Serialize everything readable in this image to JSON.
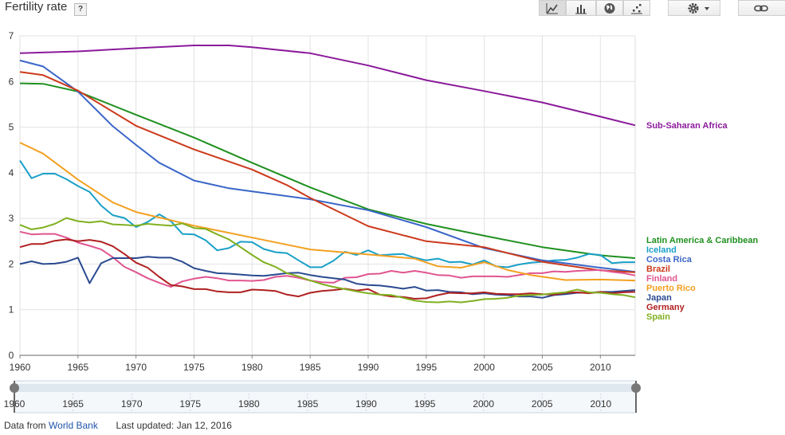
{
  "header": {
    "title": "Fertility rate",
    "help_label": "?",
    "toolbar": [
      {
        "name": "line-chart-icon",
        "active": true
      },
      {
        "name": "bar-chart-icon",
        "active": false
      },
      {
        "name": "map-icon",
        "active": false
      },
      {
        "name": "scatter-chart-icon",
        "active": false
      },
      {
        "name": "settings-icon",
        "active": false
      },
      {
        "name": "link-icon",
        "active": false
      }
    ]
  },
  "footer": {
    "source_prefix": "Data from",
    "source_link": "World Bank",
    "updated": "Last updated: Jan 12, 2016"
  },
  "chart_data": {
    "type": "line",
    "xlim": [
      1960,
      2013
    ],
    "ylim": [
      0,
      7
    ],
    "x_ticks": [
      1960,
      1965,
      1970,
      1975,
      1980,
      1985,
      1990,
      1995,
      2000,
      2005,
      2010
    ],
    "y_ticks": [
      0,
      1,
      2,
      3,
      4,
      5,
      6,
      7
    ],
    "grid": true,
    "legend_position": "right",
    "range_slider": {
      "start": 1960,
      "end": 2013
    },
    "series": [
      {
        "name": "Sub-Saharan Africa",
        "color": "#8b1a9b",
        "x": [
          1960,
          1965,
          1970,
          1975,
          1978,
          1980,
          1985,
          1990,
          1995,
          2000,
          2005,
          2010,
          2013
        ],
        "y": [
          6.62,
          6.66,
          6.73,
          6.79,
          6.79,
          6.75,
          6.62,
          6.35,
          6.03,
          5.79,
          5.54,
          5.23,
          5.04
        ]
      },
      {
        "name": "Latin America & Caribbean",
        "color": "#209020",
        "x": [
          1960,
          1962,
          1965,
          1970,
          1975,
          1980,
          1985,
          1990,
          1995,
          2000,
          2005,
          2010,
          2013
        ],
        "y": [
          5.96,
          5.95,
          5.78,
          5.27,
          4.77,
          4.22,
          3.68,
          3.2,
          2.88,
          2.62,
          2.37,
          2.19,
          2.13
        ]
      },
      {
        "name": "Iceland",
        "color": "#1aa0c8",
        "x": [
          1960,
          1961,
          1962,
          1963,
          1964,
          1965,
          1966,
          1967,
          1968,
          1969,
          1970,
          1971,
          1972,
          1973,
          1974,
          1975,
          1976,
          1977,
          1978,
          1979,
          1980,
          1981,
          1982,
          1983,
          1984,
          1985,
          1986,
          1987,
          1988,
          1989,
          1990,
          1991,
          1992,
          1993,
          1994,
          1995,
          1996,
          1997,
          1998,
          1999,
          2000,
          2001,
          2002,
          2003,
          2004,
          2005,
          2006,
          2007,
          2008,
          2009,
          2010,
          2011,
          2012,
          2013
        ],
        "y": [
          4.27,
          3.88,
          3.98,
          3.98,
          3.86,
          3.71,
          3.58,
          3.28,
          3.07,
          3.01,
          2.81,
          2.92,
          3.09,
          2.94,
          2.66,
          2.65,
          2.52,
          2.3,
          2.35,
          2.49,
          2.48,
          2.33,
          2.26,
          2.24,
          2.08,
          1.93,
          1.93,
          2.07,
          2.27,
          2.2,
          2.3,
          2.19,
          2.21,
          2.22,
          2.14,
          2.08,
          2.12,
          2.04,
          2.05,
          1.99,
          2.08,
          1.95,
          1.93,
          1.99,
          2.03,
          2.05,
          2.08,
          2.09,
          2.14,
          2.22,
          2.2,
          2.02,
          2.04,
          2.04
        ]
      },
      {
        "name": "Costa Rica",
        "color": "#3a66c8",
        "x": [
          1960,
          1962,
          1965,
          1968,
          1970,
          1972,
          1975,
          1978,
          1980,
          1985,
          1990,
          1995,
          2000,
          2005,
          2010,
          2013
        ],
        "y": [
          6.46,
          6.33,
          5.78,
          5.02,
          4.61,
          4.22,
          3.83,
          3.66,
          3.59,
          3.42,
          3.18,
          2.81,
          2.35,
          2.08,
          1.92,
          1.83
        ]
      },
      {
        "name": "Brazil",
        "color": "#cc3a1c",
        "x": [
          1960,
          1962,
          1965,
          1970,
          1975,
          1980,
          1983,
          1985,
          1990,
          1995,
          2000,
          2005,
          2010,
          2013
        ],
        "y": [
          6.21,
          6.14,
          5.8,
          5.03,
          4.51,
          4.07,
          3.73,
          3.45,
          2.83,
          2.5,
          2.37,
          2.05,
          1.86,
          1.82
        ]
      },
      {
        "name": "Finland",
        "color": "#e05590",
        "x": [
          1960,
          1961,
          1962,
          1963,
          1964,
          1965,
          1966,
          1967,
          1968,
          1969,
          1970,
          1971,
          1972,
          1973,
          1974,
          1975,
          1976,
          1977,
          1978,
          1979,
          1980,
          1981,
          1982,
          1983,
          1984,
          1985,
          1986,
          1987,
          1988,
          1989,
          1990,
          1991,
          1992,
          1993,
          1994,
          1995,
          1996,
          1997,
          1998,
          1999,
          2000,
          2001,
          2002,
          2003,
          2004,
          2005,
          2006,
          2007,
          2008,
          2009,
          2010,
          2011,
          2012,
          2013
        ],
        "y": [
          2.71,
          2.65,
          2.66,
          2.66,
          2.58,
          2.47,
          2.4,
          2.32,
          2.15,
          1.94,
          1.82,
          1.69,
          1.59,
          1.5,
          1.62,
          1.68,
          1.72,
          1.69,
          1.64,
          1.64,
          1.63,
          1.65,
          1.72,
          1.74,
          1.7,
          1.64,
          1.6,
          1.59,
          1.7,
          1.71,
          1.78,
          1.79,
          1.85,
          1.81,
          1.85,
          1.81,
          1.76,
          1.75,
          1.7,
          1.73,
          1.73,
          1.73,
          1.72,
          1.76,
          1.8,
          1.8,
          1.84,
          1.83,
          1.85,
          1.86,
          1.87,
          1.83,
          1.8,
          1.75
        ]
      },
      {
        "name": "Puerto Rico",
        "color": "#f3a020",
        "x": [
          1960,
          1962,
          1965,
          1968,
          1970,
          1975,
          1980,
          1985,
          1990,
          1994,
          1996,
          1998,
          2000,
          2002,
          2004,
          2007,
          2010,
          2013
        ],
        "y": [
          4.66,
          4.42,
          3.85,
          3.35,
          3.14,
          2.84,
          2.58,
          2.32,
          2.21,
          2.12,
          1.95,
          1.92,
          2.04,
          1.87,
          1.76,
          1.65,
          1.66,
          1.64
        ]
      },
      {
        "name": "Japan",
        "color": "#2a4a90",
        "x": [
          1960,
          1961,
          1962,
          1963,
          1964,
          1965,
          1966,
          1967,
          1968,
          1969,
          1970,
          1971,
          1972,
          1973,
          1974,
          1975,
          1976,
          1977,
          1978,
          1979,
          1980,
          1981,
          1982,
          1983,
          1984,
          1985,
          1986,
          1987,
          1988,
          1989,
          1990,
          1991,
          1992,
          1993,
          1994,
          1995,
          1996,
          1997,
          1998,
          1999,
          2000,
          2001,
          2002,
          2003,
          2004,
          2005,
          2006,
          2007,
          2008,
          2009,
          2010,
          2011,
          2012,
          2013
        ],
        "y": [
          2.0,
          2.06,
          2.0,
          2.01,
          2.05,
          2.14,
          1.58,
          2.02,
          2.13,
          2.13,
          2.13,
          2.16,
          2.14,
          2.14,
          2.05,
          1.91,
          1.85,
          1.8,
          1.79,
          1.77,
          1.75,
          1.74,
          1.77,
          1.8,
          1.81,
          1.76,
          1.72,
          1.69,
          1.66,
          1.57,
          1.54,
          1.53,
          1.5,
          1.46,
          1.5,
          1.42,
          1.43,
          1.39,
          1.38,
          1.34,
          1.36,
          1.33,
          1.32,
          1.29,
          1.29,
          1.26,
          1.32,
          1.34,
          1.37,
          1.37,
          1.39,
          1.39,
          1.41,
          1.43
        ]
      },
      {
        "name": "Germany",
        "color": "#b02020",
        "x": [
          1960,
          1961,
          1962,
          1963,
          1964,
          1965,
          1966,
          1967,
          1968,
          1969,
          1970,
          1971,
          1972,
          1973,
          1974,
          1975,
          1976,
          1977,
          1978,
          1979,
          1980,
          1981,
          1982,
          1983,
          1984,
          1985,
          1986,
          1987,
          1988,
          1989,
          1990,
          1991,
          1992,
          1993,
          1994,
          1995,
          1996,
          1997,
          1998,
          1999,
          2000,
          2001,
          2002,
          2003,
          2004,
          2005,
          2006,
          2007,
          2008,
          2009,
          2010,
          2011,
          2012,
          2013
        ],
        "y": [
          2.37,
          2.44,
          2.44,
          2.51,
          2.54,
          2.5,
          2.53,
          2.49,
          2.39,
          2.22,
          2.03,
          1.92,
          1.72,
          1.54,
          1.51,
          1.45,
          1.45,
          1.4,
          1.38,
          1.38,
          1.44,
          1.43,
          1.41,
          1.33,
          1.29,
          1.37,
          1.41,
          1.43,
          1.46,
          1.42,
          1.45,
          1.33,
          1.29,
          1.28,
          1.24,
          1.25,
          1.32,
          1.37,
          1.36,
          1.36,
          1.38,
          1.35,
          1.34,
          1.34,
          1.36,
          1.34,
          1.33,
          1.37,
          1.38,
          1.36,
          1.39,
          1.36,
          1.38,
          1.39
        ]
      },
      {
        "name": "Spain",
        "color": "#80b020",
        "x": [
          1960,
          1961,
          1962,
          1963,
          1964,
          1965,
          1966,
          1967,
          1968,
          1969,
          1970,
          1971,
          1972,
          1973,
          1974,
          1975,
          1976,
          1977,
          1978,
          1979,
          1980,
          1981,
          1982,
          1983,
          1984,
          1985,
          1986,
          1987,
          1988,
          1989,
          1990,
          1991,
          1992,
          1993,
          1994,
          1995,
          1996,
          1997,
          1998,
          1999,
          2000,
          2001,
          2002,
          2003,
          2004,
          2005,
          2006,
          2007,
          2008,
          2009,
          2010,
          2011,
          2012,
          2013
        ],
        "y": [
          2.86,
          2.76,
          2.8,
          2.88,
          3.01,
          2.94,
          2.91,
          2.94,
          2.87,
          2.86,
          2.84,
          2.88,
          2.86,
          2.84,
          2.89,
          2.79,
          2.77,
          2.65,
          2.54,
          2.37,
          2.2,
          2.04,
          1.94,
          1.8,
          1.73,
          1.64,
          1.56,
          1.5,
          1.45,
          1.4,
          1.36,
          1.33,
          1.32,
          1.26,
          1.2,
          1.17,
          1.16,
          1.18,
          1.16,
          1.19,
          1.23,
          1.24,
          1.26,
          1.31,
          1.32,
          1.33,
          1.36,
          1.38,
          1.44,
          1.38,
          1.37,
          1.34,
          1.32,
          1.27
        ]
      }
    ]
  }
}
